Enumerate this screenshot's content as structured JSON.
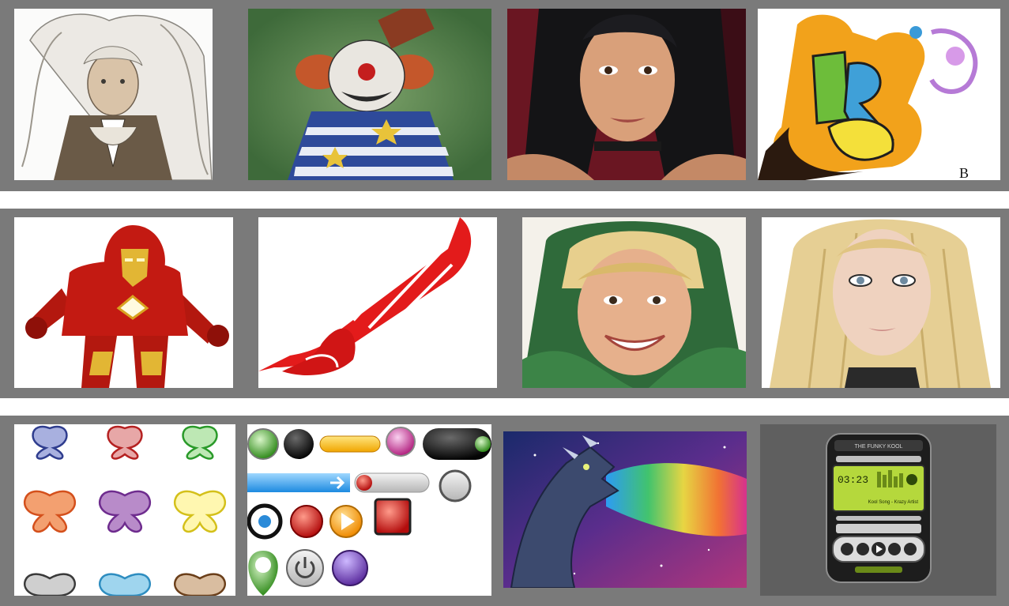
{
  "gallery": {
    "rows": [
      {
        "tiles": [
          {
            "subject": "sketched-woman-with-long-hair"
          },
          {
            "subject": "evil-clown-with-star-costume"
          },
          {
            "subject": "dark-haired-woman-portrait"
          },
          {
            "subject": "graffiti-letters-with-drips"
          }
        ]
      },
      {
        "tiles": [
          {
            "subject": "iron-man-armor"
          },
          {
            "subject": "red-wing-tribal"
          },
          {
            "subject": "smiling-woman-green-hood"
          },
          {
            "subject": "blonde-woman-portrait"
          }
        ]
      },
      {
        "tiles": [
          {
            "subject": "butterfly-ornaments-set"
          },
          {
            "subject": "glossy-web-buttons-set"
          },
          {
            "subject": "dragon-breathing-rainbow"
          },
          {
            "subject": "media-player-skin"
          }
        ]
      }
    ]
  },
  "graffiti_tile": {
    "logo_letter": "B"
  },
  "media_player": {
    "brand": "THE FUNKY KOOL",
    "time": "03:23",
    "track": "Kool Song - Krazy Artist",
    "lcd_color": "#b5d83c"
  },
  "colors": {
    "strip": "#7a7a7a",
    "player_tile_bg": "#5f5f5f"
  }
}
